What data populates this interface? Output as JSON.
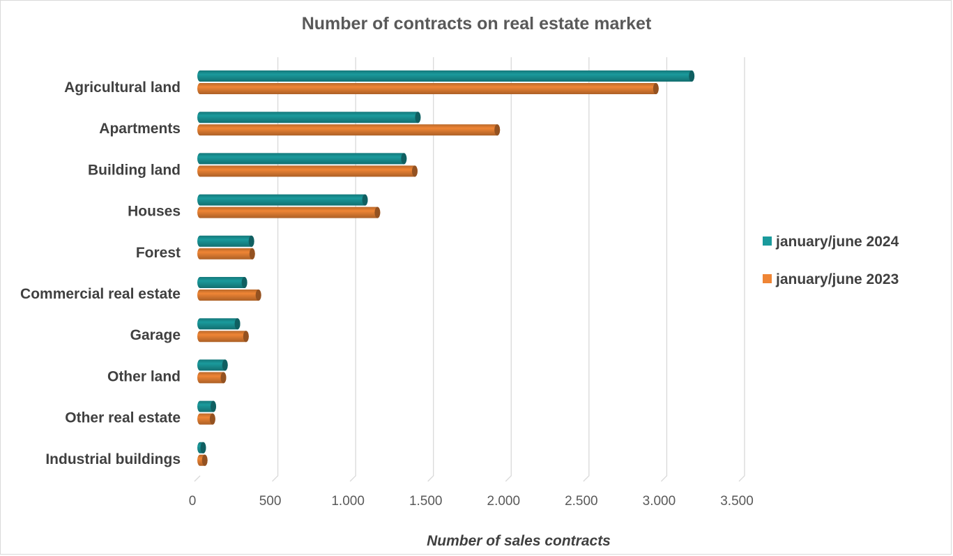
{
  "chart_data": {
    "type": "bar",
    "orientation": "horizontal",
    "title": "Number of contracts on real estate market",
    "xlabel": "Number of sales contracts",
    "ylabel": "",
    "categories": [
      "Agricultural land",
      "Apartments",
      "Building land",
      "Houses",
      "Forest",
      "Commercial real estate",
      "Garage",
      "Other land",
      "Other real estate",
      "Industrial buildings"
    ],
    "series": [
      {
        "name": "january/june 2024",
        "color": "#1a9a9c",
        "values": [
          3160,
          1400,
          1310,
          1060,
          330,
          285,
          240,
          160,
          85,
          20
        ]
      },
      {
        "name": "january/june 2023",
        "color": "#ef8535",
        "values": [
          2930,
          1910,
          1380,
          1140,
          335,
          375,
          295,
          150,
          80,
          30
        ]
      }
    ],
    "xlim": [
      0,
      3500
    ],
    "xticks": [
      0,
      500,
      1000,
      1500,
      2000,
      2500,
      3000,
      3500
    ],
    "xtick_labels": [
      "0",
      "500",
      "1.000",
      "1.500",
      "2.000",
      "2.500",
      "3.000",
      "3.500"
    ],
    "grid": true,
    "legend_position": "right"
  }
}
